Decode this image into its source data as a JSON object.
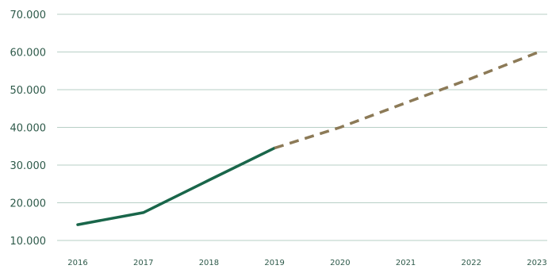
{
  "chart_data": {
    "type": "line",
    "title": "",
    "xlabel": "",
    "ylabel": "",
    "categories": [
      "2016",
      "2017",
      "2018",
      "2019",
      "2020",
      "2021",
      "2022",
      "2023"
    ],
    "ylim": [
      10000,
      70000
    ],
    "y_ticks": [
      10000,
      20000,
      30000,
      40000,
      50000,
      60000,
      70000
    ],
    "y_tick_labels": [
      "10.000",
      "20.000",
      "30.000",
      "40.000",
      "50.000",
      "60.000",
      "70.000"
    ],
    "grid": true,
    "legend": "none",
    "series": [
      {
        "style": "solid",
        "color": "#19664a",
        "x": [
          "2016",
          "2017",
          "2018",
          "2019"
        ],
        "values": [
          14200,
          17400,
          26000,
          34500
        ]
      },
      {
        "style": "dashed",
        "color": "#8c7a57",
        "x": [
          "2019",
          "2020",
          "2021",
          "2022",
          "2023"
        ],
        "values": [
          34500,
          40000,
          46500,
          53000,
          59800
        ]
      }
    ]
  }
}
